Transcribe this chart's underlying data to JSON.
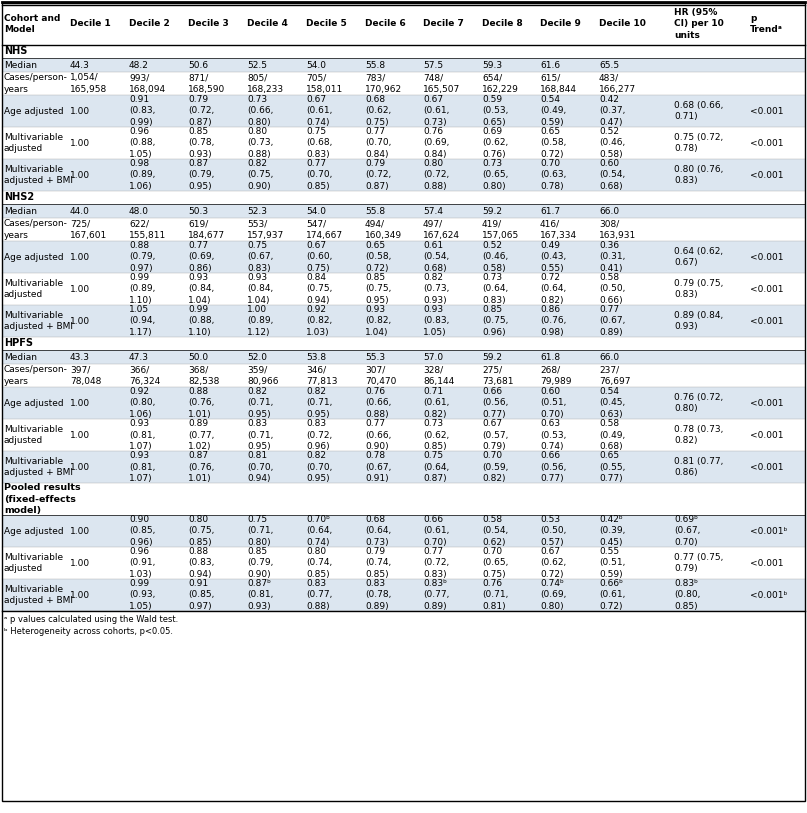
{
  "col_headers": [
    "Cohort and\nModel",
    "Decile 1",
    "Decile 2",
    "Decile 3",
    "Decile 4",
    "Decile 5",
    "Decile 6",
    "Decile 7",
    "Decile 8",
    "Decile 9",
    "Decile 10",
    "HR (95%\nCI) per 10\nunits",
    "p\nTrendᵃ"
  ],
  "bg_light": "#dce6f0",
  "bg_white": "#ffffff",
  "rows": [
    {
      "label": "NHS",
      "type": "section",
      "bg": "#ffffff",
      "values": []
    },
    {
      "label": "Median",
      "type": "data",
      "bg": "#dce6f0",
      "values": [
        "44.3",
        "48.2",
        "50.6",
        "52.5",
        "54.0",
        "55.8",
        "57.5",
        "59.3",
        "61.6",
        "65.5",
        "",
        ""
      ]
    },
    {
      "label": "Cases/person-\nyears",
      "type": "data",
      "bg": "#ffffff",
      "values": [
        "1,054/\n165,958",
        "993/\n168,094",
        "871/\n168,590",
        "805/\n168,233",
        "705/\n158,011",
        "783/\n170,962",
        "748/\n165,507",
        "654/\n162,229",
        "615/\n168,844",
        "483/\n166,277",
        "",
        ""
      ]
    },
    {
      "label": "Age adjusted",
      "type": "data",
      "bg": "#dce6f0",
      "values": [
        "1.00",
        "0.91\n(0.83,\n0.99)",
        "0.79\n(0.72,\n0.87)",
        "0.73\n(0.66,\n0.80)",
        "0.67\n(0.61,\n0.74)",
        "0.68\n(0.62,\n0.75)",
        "0.67\n(0.61,\n0.73)",
        "0.59\n(0.53,\n0.65)",
        "0.54\n(0.49,\n0.59)",
        "0.42\n(0.37,\n0.47)",
        "0.68 (0.66,\n0.71)",
        "<0.001"
      ]
    },
    {
      "label": "Multivariable\nadjusted",
      "type": "data",
      "bg": "#ffffff",
      "values": [
        "1.00",
        "0.96\n(0.88,\n1.05)",
        "0.85\n(0.78,\n0.93)",
        "0.80\n(0.73,\n0.88)",
        "0.75\n(0.68,\n0.83)",
        "0.77\n(0.70,\n0.84)",
        "0.76\n(0.69,\n0.84)",
        "0.69\n(0.62,\n0.76)",
        "0.65\n(0.58,\n0.72)",
        "0.52\n(0.46,\n0.58)",
        "0.75 (0.72,\n0.78)",
        "<0.001"
      ]
    },
    {
      "label": "Multivariable\nadjusted + BMI",
      "type": "data",
      "bg": "#dce6f0",
      "values": [
        "1.00",
        "0.98\n(0.89,\n1.06)",
        "0.87\n(0.79,\n0.95)",
        "0.82\n(0.75,\n0.90)",
        "0.77\n(0.70,\n0.85)",
        "0.79\n(0.72,\n0.87)",
        "0.80\n(0.72,\n0.88)",
        "0.73\n(0.65,\n0.80)",
        "0.70\n(0.63,\n0.78)",
        "0.60\n(0.54,\n0.68)",
        "0.80 (0.76,\n0.83)",
        "<0.001"
      ]
    },
    {
      "label": "NHS2",
      "type": "section",
      "bg": "#ffffff",
      "values": []
    },
    {
      "label": "Median",
      "type": "data",
      "bg": "#dce6f0",
      "values": [
        "44.0",
        "48.0",
        "50.3",
        "52.3",
        "54.0",
        "55.8",
        "57.4",
        "59.2",
        "61.7",
        "66.0",
        "",
        ""
      ]
    },
    {
      "label": "Cases/person-\nyears",
      "type": "data",
      "bg": "#ffffff",
      "values": [
        "725/\n167,601",
        "622/\n155,811",
        "619/\n184,677",
        "553/\n157,937",
        "547/\n174,667",
        "494/\n160,349",
        "497/\n167,624",
        "419/\n157,065",
        "416/\n167,334",
        "308/\n163,931",
        "",
        ""
      ]
    },
    {
      "label": "Age adjusted",
      "type": "data",
      "bg": "#dce6f0",
      "values": [
        "1.00",
        "0.88\n(0.79,\n0.97)",
        "0.77\n(0.69,\n0.86)",
        "0.75\n(0.67,\n0.83)",
        "0.67\n(0.60,\n0.75)",
        "0.65\n(0.58,\n0.72)",
        "0.61\n(0.54,\n0.68)",
        "0.52\n(0.46,\n0.58)",
        "0.49\n(0.43,\n0.55)",
        "0.36\n(0.31,\n0.41)",
        "0.64 (0.62,\n0.67)",
        "<0.001"
      ]
    },
    {
      "label": "Multivariable\nadjusted",
      "type": "data",
      "bg": "#ffffff",
      "values": [
        "1.00",
        "0.99\n(0.89,\n1.10)",
        "0.93\n(0.84,\n1.04)",
        "0.93\n(0.84,\n1.04)",
        "0.84\n(0.75,\n0.94)",
        "0.85\n(0.75,\n0.95)",
        "0.82\n(0.73,\n0.93)",
        "0.73\n(0.64,\n0.83)",
        "0.72\n(0.64,\n0.82)",
        "0.58\n(0.50,\n0.66)",
        "0.79 (0.75,\n0.83)",
        "<0.001"
      ]
    },
    {
      "label": "Multivariable\nadjusted + BMI",
      "type": "data",
      "bg": "#dce6f0",
      "values": [
        "1.00",
        "1.05\n(0.94,\n1.17)",
        "0.99\n(0.88,\n1.10)",
        "1.00\n(0.89,\n1.12)",
        "0.92\n(0.82,\n1.03)",
        "0.93\n(0.82,\n1.04)",
        "0.93\n(0.83,\n1.05)",
        "0.85\n(0.75,\n0.96)",
        "0.86\n(0.76,\n0.98)",
        "0.77\n(0.67,\n0.89)",
        "0.89 (0.84,\n0.93)",
        "<0.001"
      ]
    },
    {
      "label": "HPFS",
      "type": "section",
      "bg": "#ffffff",
      "values": []
    },
    {
      "label": "Median",
      "type": "data",
      "bg": "#dce6f0",
      "values": [
        "43.3",
        "47.3",
        "50.0",
        "52.0",
        "53.8",
        "55.3",
        "57.0",
        "59.2",
        "61.8",
        "66.0",
        "",
        ""
      ]
    },
    {
      "label": "Cases/person-\nyears",
      "type": "data",
      "bg": "#ffffff",
      "values": [
        "397/\n78,048",
        "366/\n76,324",
        "368/\n82,538",
        "359/\n80,966",
        "346/\n77,813",
        "307/\n70,470",
        "328/\n86,144",
        "275/\n73,681",
        "268/\n79,989",
        "237/\n76,697",
        "",
        ""
      ]
    },
    {
      "label": "Age adjusted",
      "type": "data",
      "bg": "#dce6f0",
      "values": [
        "1.00",
        "0.92\n(0.80,\n1.06)",
        "0.88\n(0.76,\n1.01)",
        "0.82\n(0.71,\n0.95)",
        "0.82\n(0.71,\n0.95)",
        "0.76\n(0.66,\n0.88)",
        "0.71\n(0.61,\n0.82)",
        "0.66\n(0.56,\n0.77)",
        "0.60\n(0.51,\n0.70)",
        "0.54\n(0.45,\n0.63)",
        "0.76 (0.72,\n0.80)",
        "<0.001"
      ]
    },
    {
      "label": "Multivariable\nadjusted",
      "type": "data",
      "bg": "#ffffff",
      "values": [
        "1.00",
        "0.93\n(0.81,\n1.07)",
        "0.89\n(0.77,\n1.02)",
        "0.83\n(0.71,\n0.95)",
        "0.83\n(0.72,\n0.96)",
        "0.77\n(0.66,\n0.90)",
        "0.73\n(0.62,\n0.85)",
        "0.67\n(0.57,\n0.79)",
        "0.63\n(0.53,\n0.74)",
        "0.58\n(0.49,\n0.68)",
        "0.78 (0.73,\n0.82)",
        "<0.001"
      ]
    },
    {
      "label": "Multivariable\nadjusted + BMI",
      "type": "data",
      "bg": "#dce6f0",
      "values": [
        "1.00",
        "0.93\n(0.81,\n1.07)",
        "0.87\n(0.76,\n1.01)",
        "0.81\n(0.70,\n0.94)",
        "0.82\n(0.70,\n0.95)",
        "0.78\n(0.67,\n0.91)",
        "0.75\n(0.64,\n0.87)",
        "0.70\n(0.59,\n0.82)",
        "0.66\n(0.56,\n0.77)",
        "0.65\n(0.55,\n0.77)",
        "0.81 (0.77,\n0.86)",
        "<0.001"
      ]
    },
    {
      "label": "Pooled results\n(fixed-effects\nmodel)",
      "type": "section_bold",
      "bg": "#ffffff",
      "values": []
    },
    {
      "label": "Age adjusted",
      "type": "data",
      "bg": "#dce6f0",
      "values": [
        "1.00",
        "0.90\n(0.85,\n0.96)",
        "0.80\n(0.75,\n0.85)",
        "0.75\n(0.71,\n0.80)",
        "0.70ᵇ\n(0.64,\n0.74)",
        "0.68\n(0.64,\n0.73)",
        "0.66\n(0.61,\n0.70)",
        "0.58\n(0.54,\n0.62)",
        "0.53\n(0.50,\n0.57)",
        "0.42ᵇ\n(0.39,\n0.45)",
        "0.69ᵇ\n(0.67,\n0.70)",
        "<0.001ᵇ"
      ]
    },
    {
      "label": "Multivariable\nadjusted",
      "type": "data",
      "bg": "#ffffff",
      "values": [
        "1.00",
        "0.96\n(0.91,\n1.03)",
        "0.88\n(0.83,\n0.94)",
        "0.85\n(0.79,\n0.90)",
        "0.80\n(0.74,\n0.85)",
        "0.79\n(0.74,\n0.85)",
        "0.77\n(0.72,\n0.83)",
        "0.70\n(0.65,\n0.75)",
        "0.67\n(0.62,\n0.72)",
        "0.55\n(0.51,\n0.59)",
        "0.77 (0.75,\n0.79)",
        "<0.001"
      ]
    },
    {
      "label": "Multivariable\nadjusted + BMI",
      "type": "data",
      "bg": "#dce6f0",
      "values": [
        "1.00",
        "0.99\n(0.93,\n1.05)",
        "0.91\n(0.85,\n0.97)",
        "0.87ᵇ\n(0.81,\n0.93)",
        "0.83\n(0.77,\n0.88)",
        "0.83\n(0.78,\n0.89)",
        "0.83ᵇ\n(0.77,\n0.89)",
        "0.76\n(0.71,\n0.81)",
        "0.74ᵇ\n(0.69,\n0.80)",
        "0.66ᵇ\n(0.61,\n0.72)",
        "0.83ᵇ\n(0.80,\n0.85)",
        "<0.001ᵇ"
      ]
    }
  ],
  "footnote": "ᵃ p values calculated using the Wald test.\nᵇ Heterogeneity across cohorts, p<0.05."
}
